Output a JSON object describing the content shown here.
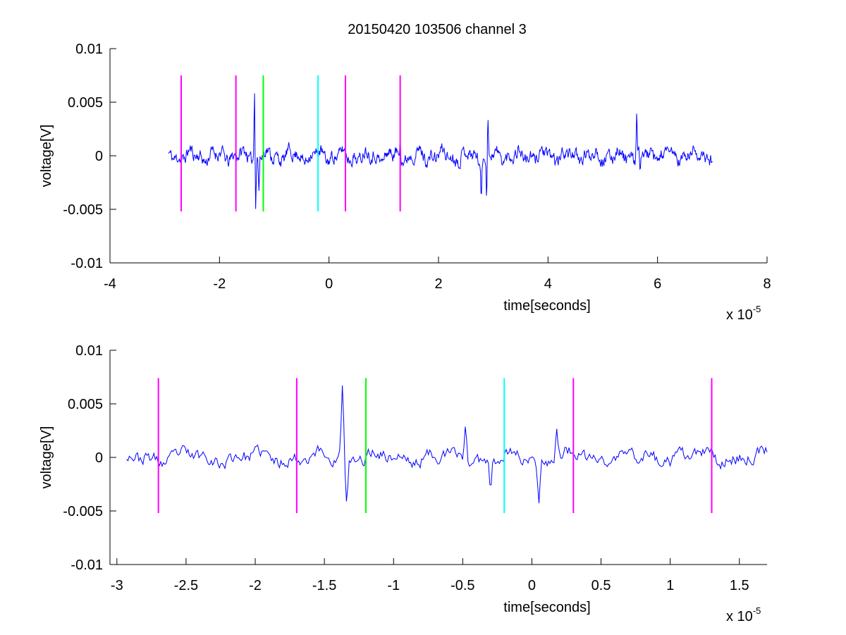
{
  "figure": {
    "title": "20150420 103506 channel 3"
  },
  "chart_data": [
    {
      "type": "line",
      "title": "20150420 103506 channel 3",
      "xlabel": "time[seconds]",
      "ylabel": "voltage[V]",
      "x_exponent_label": "x 10",
      "x_exponent": "-5",
      "xlim": [
        -4,
        8
      ],
      "ylim": [
        -0.01,
        0.01
      ],
      "xticks": [
        -4,
        -2,
        0,
        2,
        4,
        6,
        8
      ],
      "xtick_labels": [
        "-4",
        "-2",
        "0",
        "2",
        "4",
        "6",
        "8"
      ],
      "yticks": [
        -0.01,
        -0.005,
        0,
        0.005,
        0.01
      ],
      "ytick_labels": [
        "-0.01",
        "-0.005",
        "0",
        "0.005",
        "0.01"
      ],
      "grid": false,
      "signal": {
        "color": "#0000ff",
        "x_start": -2.93,
        "x_end": 7.0,
        "points": 1000,
        "seed": 11,
        "noise_amplitude": 0.0011,
        "spikes": [
          {
            "x": -1.36,
            "y": 0.0068
          },
          {
            "x": -1.34,
            "y": -0.0048
          },
          {
            "x": -1.28,
            "y": -0.003
          },
          {
            "x": 1.3,
            "y": 0.0022
          },
          {
            "x": 2.78,
            "y": -0.0039
          },
          {
            "x": 2.88,
            "y": -0.0042
          },
          {
            "x": 2.9,
            "y": 0.0034
          },
          {
            "x": 5.62,
            "y": 0.0039
          },
          {
            "x": 5.68,
            "y": -0.0024
          }
        ]
      },
      "markers": [
        {
          "x": -2.7,
          "color": "#ff00ff",
          "ymin": -0.0052,
          "ymax": 0.0075
        },
        {
          "x": -1.7,
          "color": "#ff00ff",
          "ymin": -0.0052,
          "ymax": 0.0075
        },
        {
          "x": -1.2,
          "color": "#00ff00",
          "ymin": -0.0052,
          "ymax": 0.0075
        },
        {
          "x": -0.2,
          "color": "#00ffff",
          "ymin": -0.0052,
          "ymax": 0.0075
        },
        {
          "x": 0.3,
          "color": "#ff00ff",
          "ymin": -0.0052,
          "ymax": 0.0075
        },
        {
          "x": 1.3,
          "color": "#ff00ff",
          "ymin": -0.0052,
          "ymax": 0.0075
        }
      ]
    },
    {
      "type": "line",
      "title": "",
      "xlabel": "time[seconds]",
      "ylabel": "voltage[V]",
      "x_exponent_label": "x 10",
      "x_exponent": "-5",
      "xlim": [
        -3.05,
        1.7
      ],
      "ylim": [
        -0.01,
        0.01
      ],
      "xticks": [
        -3,
        -2.5,
        -2,
        -1.5,
        -1,
        -0.5,
        0,
        0.5,
        1,
        1.5
      ],
      "xtick_labels": [
        "-3",
        "-2.5",
        "-2",
        "-1.5",
        "-1",
        "-0.5",
        "0",
        "0.5",
        "1",
        "1.5"
      ],
      "yticks": [
        -0.01,
        -0.005,
        0,
        0.005,
        0.01
      ],
      "ytick_labels": [
        "-0.01",
        "-0.005",
        "0",
        "0.005",
        "0.01"
      ],
      "grid": false,
      "signal": {
        "color": "#0000ff",
        "x_start": -2.93,
        "x_end": 1.7,
        "points": 470,
        "seed": 23,
        "noise_amplitude": 0.0011,
        "spikes": [
          {
            "x": -1.37,
            "y": 0.0068
          },
          {
            "x": -1.34,
            "y": -0.0047
          },
          {
            "x": -0.48,
            "y": 0.0033
          },
          {
            "x": -0.3,
            "y": -0.003
          },
          {
            "x": 0.05,
            "y": -0.0036
          },
          {
            "x": 0.18,
            "y": 0.003
          }
        ]
      },
      "markers": [
        {
          "x": -2.7,
          "color": "#ff00ff",
          "ymin": -0.0052,
          "ymax": 0.0074
        },
        {
          "x": -1.7,
          "color": "#ff00ff",
          "ymin": -0.0052,
          "ymax": 0.0074
        },
        {
          "x": -1.2,
          "color": "#00ff00",
          "ymin": -0.0052,
          "ymax": 0.0074
        },
        {
          "x": -0.2,
          "color": "#00ffff",
          "ymin": -0.0052,
          "ymax": 0.0074
        },
        {
          "x": 0.3,
          "color": "#ff00ff",
          "ymin": -0.0052,
          "ymax": 0.0074
        },
        {
          "x": 1.3,
          "color": "#ff00ff",
          "ymin": -0.0052,
          "ymax": 0.0074
        }
      ]
    }
  ]
}
